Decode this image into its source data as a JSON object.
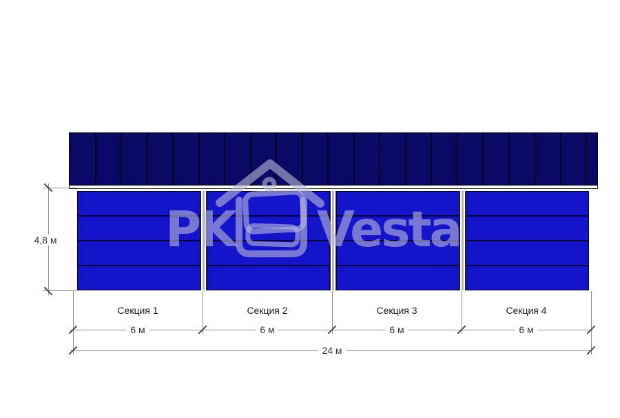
{
  "dimensions": {
    "height_label": "4,8 м",
    "total_width_label": "24 м",
    "sections": [
      {
        "name": "Секция 1",
        "width_label": "6 м"
      },
      {
        "name": "Секция 2",
        "width_label": "6 м"
      },
      {
        "name": "Секция 3",
        "width_label": "6 м"
      },
      {
        "name": "Секция 4",
        "width_label": "6 м"
      }
    ]
  },
  "structure": {
    "roof_panel_count": 20,
    "wall_strip_count": 4,
    "section_count": 4
  },
  "watermark": {
    "prefix": "PK",
    "brand": "Vesta",
    "icon": "house-logo-icon"
  },
  "colors": {
    "roof": "#0a0a66",
    "wall": "#1414ca",
    "dimension_line": "#8f8f8f",
    "dimension_text": "#333333",
    "watermark": "rgba(186,186,218,0.6)"
  }
}
